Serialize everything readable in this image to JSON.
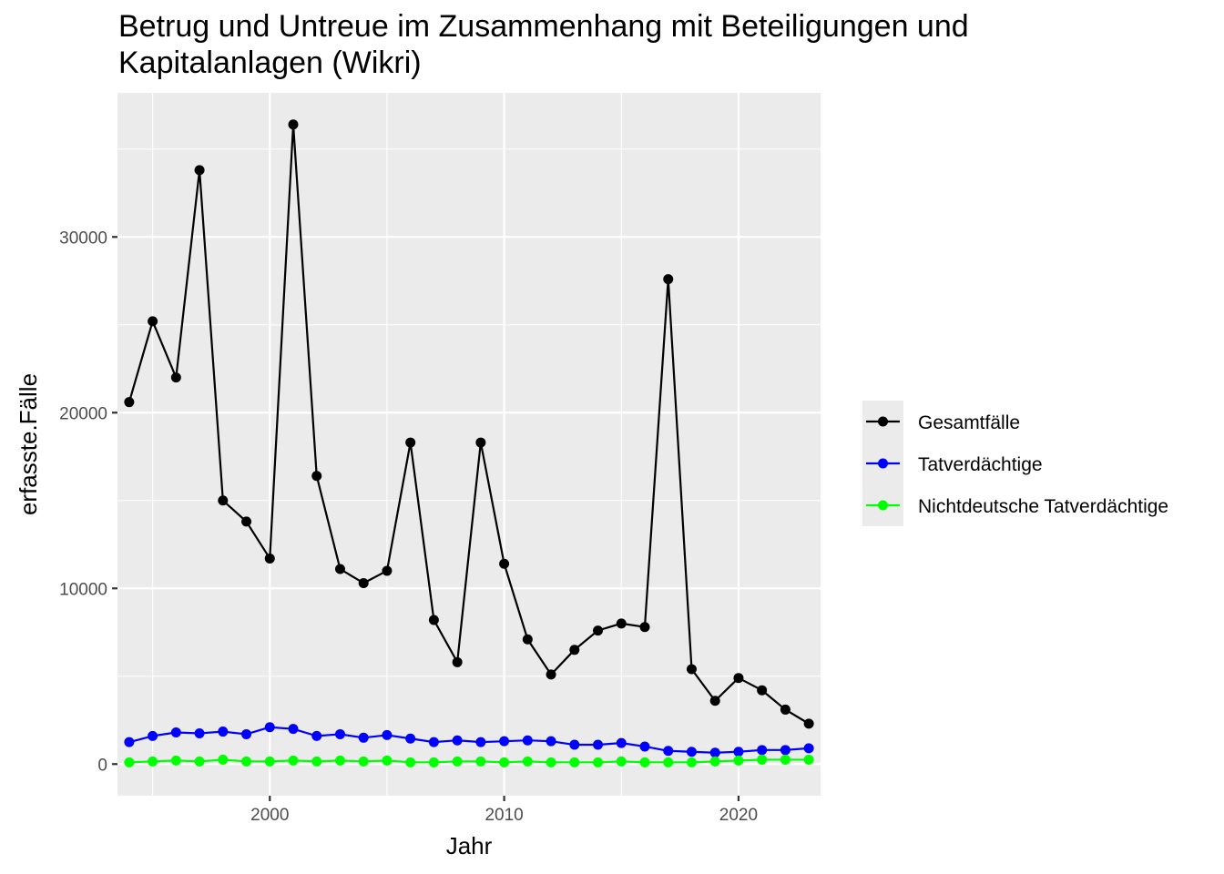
{
  "chart_data": {
    "type": "line",
    "title": "Betrug und Untreue im Zusammenhang mit Beteiligungen und Kapitalanlagen (Wikri)",
    "title_lines": [
      "Betrug und Untreue im Zusammenhang mit Beteiligungen und",
      "Kapitalanlagen (Wikri)"
    ],
    "xlabel": "Jahr",
    "ylabel": "erfasste.Fälle",
    "xlim": [
      1993.5,
      2023.5
    ],
    "ylim": [
      -1800,
      38200
    ],
    "x_ticks": [
      2000,
      2010,
      2020
    ],
    "y_ticks": [
      0,
      10000,
      20000,
      30000
    ],
    "grid": true,
    "legend_position": "right",
    "x": [
      1994,
      1995,
      1996,
      1997,
      1998,
      1999,
      2000,
      2001,
      2002,
      2003,
      2004,
      2005,
      2006,
      2007,
      2008,
      2009,
      2010,
      2011,
      2012,
      2013,
      2014,
      2015,
      2016,
      2017,
      2018,
      2019,
      2020,
      2021,
      2022,
      2023
    ],
    "series": [
      {
        "name": "Gesamtfälle",
        "color": "#000000",
        "values": [
          20600,
          25200,
          22000,
          33800,
          15000,
          13800,
          11700,
          36400,
          16400,
          11100,
          10300,
          11000,
          18300,
          8200,
          5800,
          18300,
          11400,
          7100,
          5100,
          6500,
          7600,
          8000,
          7800,
          27600,
          5400,
          3600,
          4900,
          4200,
          3100,
          2300
        ]
      },
      {
        "name": "Tatverdächtige",
        "color": "#0000ff",
        "values": [
          1250,
          1600,
          1800,
          1750,
          1850,
          1700,
          2100,
          2000,
          1600,
          1700,
          1500,
          1650,
          1450,
          1250,
          1350,
          1250,
          1300,
          1350,
          1300,
          1100,
          1100,
          1200,
          1000,
          750,
          700,
          650,
          700,
          800,
          800,
          900
        ]
      },
      {
        "name": "Nichtdeutsche Tatverdächtige",
        "color": "#00ff00",
        "values": [
          100,
          150,
          200,
          150,
          250,
          150,
          150,
          200,
          150,
          200,
          150,
          200,
          100,
          100,
          150,
          150,
          100,
          150,
          100,
          100,
          100,
          150,
          100,
          100,
          100,
          150,
          200,
          250,
          250,
          250
        ]
      }
    ]
  },
  "colors": {
    "panel_background": "#ebebeb",
    "grid_major": "#ffffff",
    "tick_text": "#4d4d4d"
  }
}
